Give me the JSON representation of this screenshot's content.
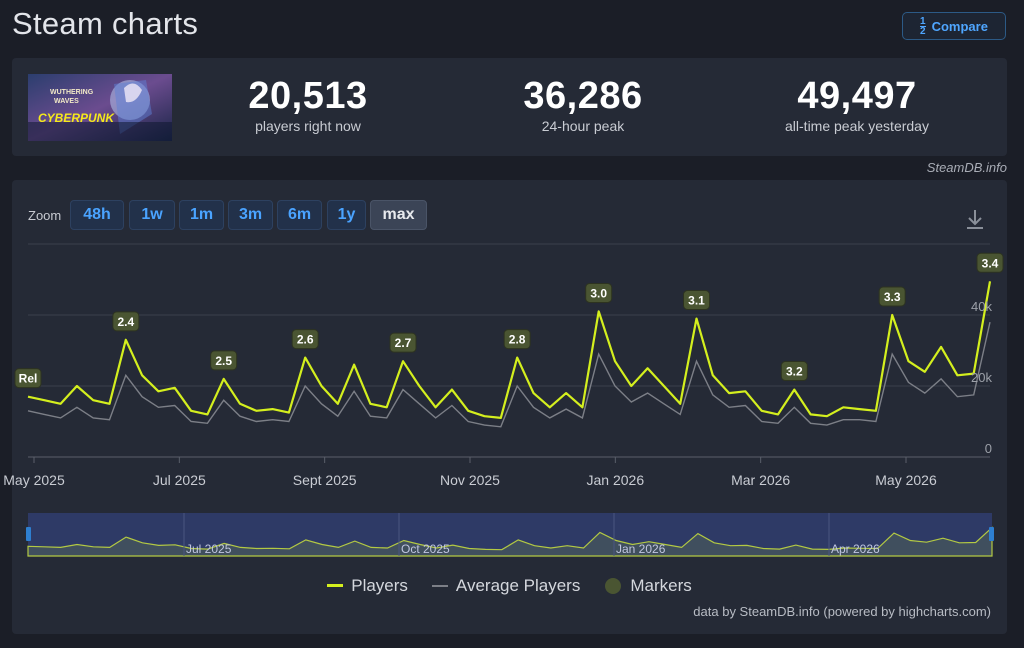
{
  "header": {
    "title": "Steam charts",
    "compare_label": "Compare"
  },
  "banner": {
    "line1": "WUTHERING",
    "line2": "WAVES",
    "line3": "CYBERPUNK"
  },
  "stats": [
    {
      "value": "20,513",
      "label": "players right now"
    },
    {
      "value": "36,286",
      "label": "24-hour peak"
    },
    {
      "value": "49,497",
      "label": "all-time peak yesterday"
    }
  ],
  "credit_top": "SteamDB.info",
  "zoom": {
    "label": "Zoom",
    "buttons": [
      "48h",
      "1w",
      "1m",
      "3m",
      "6m",
      "1y",
      "max"
    ],
    "active": "max"
  },
  "legend": {
    "players": "Players",
    "average": "Average Players",
    "markers": "Markers"
  },
  "credit_bottom": "data by SteamDB.info (powered by highcharts.com)",
  "colors": {
    "players": "#d4ef1e",
    "average": "#7c7f87",
    "marker_bg": "#4a5532",
    "accent": "#4aa3ff"
  },
  "chart_data": {
    "type": "line",
    "x_labels": [
      "May 2025",
      "Jul 2025",
      "Sept 2025",
      "Nov 2025",
      "Jan 2026",
      "Mar 2026",
      "May 2026"
    ],
    "y_ticks": [
      "0",
      "20k",
      "40k"
    ],
    "ylim": [
      0,
      60000
    ],
    "grid": true,
    "series": [
      {
        "name": "Players",
        "values": [
          17000,
          16000,
          15000,
          20000,
          16000,
          15000,
          33000,
          23000,
          18500,
          19500,
          13000,
          12000,
          22000,
          15000,
          13000,
          13500,
          12500,
          28000,
          20000,
          15000,
          26000,
          15000,
          14000,
          27000,
          20000,
          14000,
          19000,
          13000,
          11500,
          11000,
          28000,
          18000,
          14000,
          18000,
          14000,
          41000,
          27000,
          20000,
          25000,
          20000,
          15000,
          39000,
          23000,
          18000,
          18500,
          13000,
          12000,
          19000,
          12000,
          11500,
          14000,
          13500,
          13000,
          40000,
          27000,
          24000,
          31000,
          23000,
          23500,
          49497
        ]
      },
      {
        "name": "Average Players",
        "values": [
          13000,
          12000,
          11000,
          14000,
          11000,
          10500,
          23000,
          17000,
          14000,
          14500,
          10000,
          9500,
          16000,
          11500,
          10000,
          10500,
          10000,
          20000,
          15000,
          11500,
          18500,
          11500,
          11000,
          19000,
          15000,
          11000,
          14500,
          10000,
          9000,
          8500,
          20000,
          14000,
          11000,
          13500,
          11000,
          29000,
          20000,
          15500,
          18000,
          15000,
          12000,
          27000,
          17500,
          14000,
          14500,
          10000,
          9500,
          14000,
          9500,
          9000,
          10500,
          10500,
          10000,
          29000,
          21000,
          18000,
          22000,
          17000,
          17500,
          38000
        ]
      }
    ],
    "markers": [
      {
        "label": "Rel",
        "index": 0
      },
      {
        "label": "2.4",
        "index": 6
      },
      {
        "label": "2.5",
        "index": 12
      },
      {
        "label": "2.6",
        "index": 17
      },
      {
        "label": "2.7",
        "index": 23
      },
      {
        "label": "2.8",
        "index": 30
      },
      {
        "label": "3.0",
        "index": 35
      },
      {
        "label": "3.1",
        "index": 41
      },
      {
        "label": "3.2",
        "index": 47
      },
      {
        "label": "3.3",
        "index": 53
      },
      {
        "label": "3.4",
        "index": 59
      }
    ],
    "navigator_labels": [
      "Jul 2025",
      "Oct 2025",
      "Jan 2026",
      "Apr 2026"
    ]
  }
}
